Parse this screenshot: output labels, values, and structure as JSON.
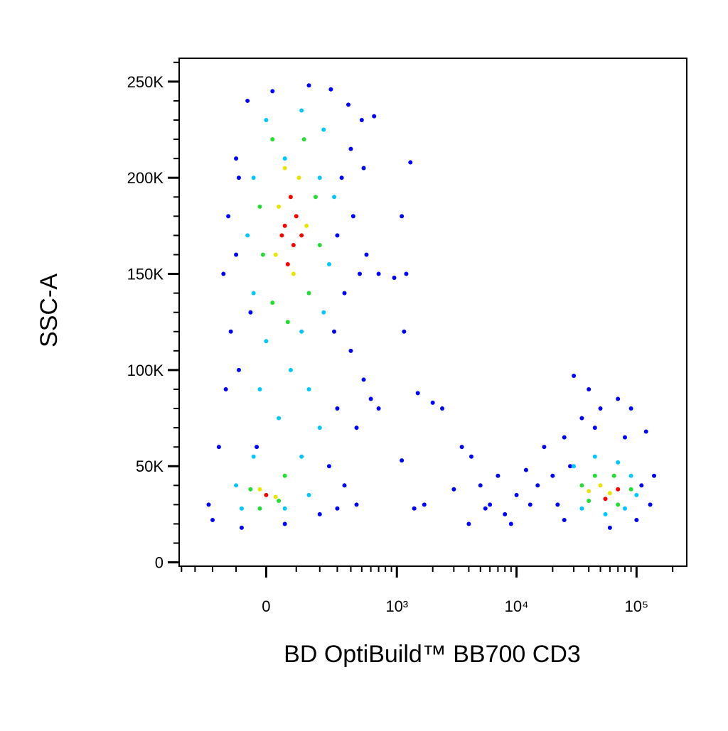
{
  "chart_data": {
    "type": "scatter",
    "x_label": "BD OptiBuild™ BB700 CD3",
    "y_label": "SSC-A",
    "x_scale": "arcsinh",
    "x_cofactor": 164,
    "xlim": [
      -420,
      262144
    ],
    "ylim": [
      -2000,
      262144
    ],
    "xticks": [
      0,
      {
        "value": 1000,
        "label": "10³"
      },
      {
        "value": 10000,
        "label": "10⁴"
      },
      {
        "value": 100000,
        "label": "10⁵"
      }
    ],
    "yticks": [
      0,
      {
        "value": 50000,
        "label": "50K"
      },
      {
        "value": 100000,
        "label": "100K"
      },
      {
        "value": 150000,
        "label": "150K"
      },
      {
        "value": 200000,
        "label": "200K"
      },
      {
        "value": 250000,
        "label": "250K"
      }
    ],
    "x_minor_ticks": [
      -400,
      -300,
      -200,
      -100,
      100,
      200,
      300,
      400,
      500,
      600,
      700,
      800,
      900,
      2000,
      3000,
      4000,
      5000,
      6000,
      7000,
      8000,
      9000,
      20000,
      30000,
      40000,
      50000,
      60000,
      70000,
      80000,
      90000,
      200000
    ],
    "y_minor_ticks": [
      10000,
      20000,
      30000,
      40000,
      60000,
      70000,
      80000,
      90000,
      110000,
      120000,
      130000,
      140000,
      160000,
      170000,
      180000,
      190000,
      210000,
      220000,
      230000,
      240000,
      260000
    ],
    "series": [
      {
        "color": "#0000ff",
        "x": [
          -60,
          20,
          150,
          260,
          380,
          500,
          640,
          -100,
          -130,
          -150,
          -120,
          -140,
          -170,
          -220,
          -200,
          -80,
          60,
          200,
          300,
          330,
          400,
          520,
          300,
          420,
          550,
          350,
          480,
          700,
          280,
          400,
          520,
          300,
          450,
          600,
          700,
          250,
          350,
          450,
          -30,
          -90,
          -50,
          -100,
          -90,
          1100,
          1200,
          950,
          1300,
          1150,
          1500,
          2000,
          2400,
          1100,
          1400,
          1700,
          3000,
          3500,
          4200,
          5000,
          6000,
          7000,
          8000,
          10000,
          12000,
          15000,
          4000,
          5500,
          9000,
          13000,
          17000,
          20000,
          22000,
          25000,
          30000,
          40000,
          50000,
          70000,
          90000,
          120000,
          140000,
          130000,
          100000,
          60000,
          35000,
          80000,
          45000,
          25000,
          110000,
          28000
        ],
        "values": [
          240000,
          245000,
          248000,
          246000,
          238000,
          230000,
          232000,
          210000,
          180000,
          150000,
          120000,
          90000,
          60000,
          30000,
          22000,
          18000,
          20000,
          25000,
          28000,
          200000,
          215000,
          205000,
          170000,
          180000,
          160000,
          140000,
          150000,
          150000,
          120000,
          110000,
          95000,
          80000,
          70000,
          85000,
          80000,
          50000,
          40000,
          30000,
          60000,
          100000,
          130000,
          160000,
          200000,
          180000,
          150000,
          148000,
          208000,
          120000,
          88000,
          83000,
          80000,
          53000,
          28000,
          30000,
          38000,
          60000,
          55000,
          40000,
          30000,
          45000,
          25000,
          35000,
          48000,
          40000,
          20000,
          28000,
          20000,
          30000,
          60000,
          45000,
          30000,
          22000,
          97000,
          90000,
          80000,
          85000,
          80000,
          68000,
          45000,
          30000,
          22000,
          18000,
          75000,
          65000,
          70000,
          65000,
          40000,
          50000
        ]
      },
      {
        "color": "#00c8ff",
        "x": [
          0,
          120,
          220,
          -40,
          60,
          200,
          280,
          -60,
          250,
          -40,
          220,
          0,
          120,
          80,
          -20,
          150,
          40,
          200,
          -40,
          120,
          -100,
          150,
          -80,
          60,
          30000,
          45000,
          70000,
          90000,
          35000,
          80000,
          55000,
          100000
        ],
        "values": [
          230000,
          235000,
          225000,
          200000,
          210000,
          200000,
          190000,
          170000,
          155000,
          140000,
          130000,
          115000,
          120000,
          100000,
          90000,
          90000,
          75000,
          70000,
          55000,
          55000,
          40000,
          35000,
          28000,
          28000,
          50000,
          55000,
          52000,
          45000,
          28000,
          28000,
          25000,
          35000
        ]
      },
      {
        "color": "#22dd33",
        "x": [
          20,
          130,
          -20,
          180,
          -10,
          200,
          20,
          150,
          70,
          -50,
          60,
          -20,
          40,
          35000,
          45000,
          65000,
          90000,
          40000,
          70000
        ],
        "values": [
          220000,
          220000,
          185000,
          190000,
          160000,
          165000,
          135000,
          140000,
          125000,
          38000,
          45000,
          28000,
          32000,
          40000,
          45000,
          45000,
          38000,
          32000,
          30000
        ]
      },
      {
        "color": "#e6e600",
        "x": [
          60,
          110,
          40,
          140,
          30,
          90,
          -20,
          30,
          50000,
          60000,
          40000
        ],
        "values": [
          205000,
          200000,
          185000,
          175000,
          160000,
          150000,
          38000,
          34000,
          40000,
          36000,
          37000
        ]
      },
      {
        "color": "#ff0000",
        "x": [
          80,
          100,
          60,
          90,
          70,
          120,
          50,
          0,
          55000,
          70000
        ],
        "values": [
          190000,
          180000,
          175000,
          165000,
          155000,
          170000,
          170000,
          35000,
          33000,
          38000
        ]
      }
    ]
  }
}
